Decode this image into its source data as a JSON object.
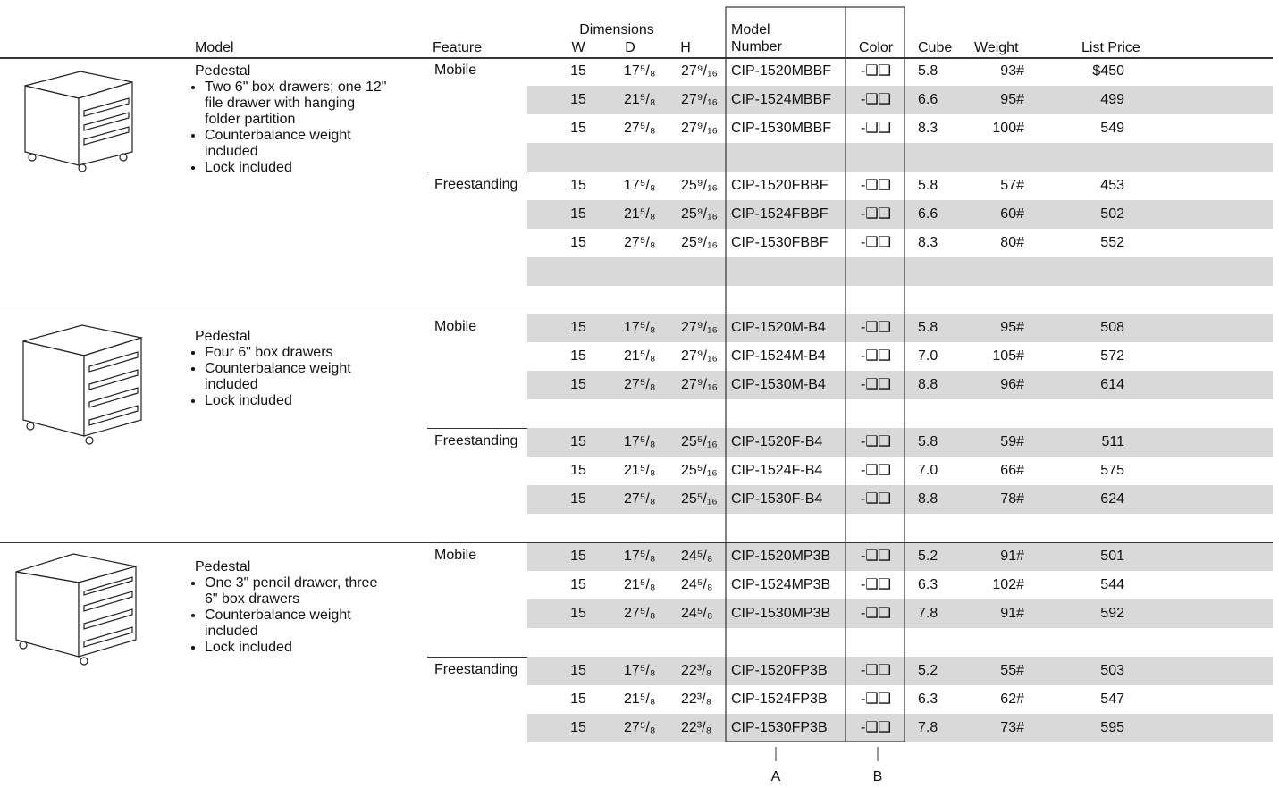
{
  "header": {
    "model": "Model",
    "feature": "Feature",
    "dimensions": "Dimensions",
    "w": "W",
    "d": "D",
    "h": "H",
    "model_number": [
      "Model",
      "Number"
    ],
    "color": "Color",
    "cube": "Cube",
    "weight": "Weight",
    "list_price": "List Price"
  },
  "groups": [
    {
      "title": "Pedestal",
      "bullets": [
        [
          "Two 6\" box drawers; one 12\"",
          "file drawer with hanging",
          "folder partition"
        ],
        [
          "Counterbalance weight",
          "included"
        ],
        [
          "Lock included"
        ]
      ],
      "features": [
        {
          "name": "Mobile",
          "rows": [
            [
              "15",
              "17⁵/₈",
              "27⁹/₁₆",
              "CIP-1520MBBF",
              "-❑❑",
              "5.8",
              "93#",
              "$450"
            ],
            [
              "15",
              "21⁵/₈",
              "27⁹/₁₆",
              "CIP-1524MBBF",
              "-❑❑",
              "6.6",
              "95#",
              "499"
            ],
            [
              "15",
              "27⁵/₈",
              "27⁹/₁₆",
              "CIP-1530MBBF",
              "-❑❑",
              "8.3",
              "100#",
              "549"
            ]
          ]
        },
        {
          "name": "Freestanding",
          "rows": [
            [
              "15",
              "17⁵/₈",
              "25⁹/₁₆",
              "CIP-1520FBBF",
              "-❑❑",
              "5.8",
              "57#",
              "453"
            ],
            [
              "15",
              "21⁵/₈",
              "25⁹/₁₆",
              "CIP-1524FBBF",
              "-❑❑",
              "6.6",
              "60#",
              "502"
            ],
            [
              "15",
              "27⁵/₈",
              "25⁹/₁₆",
              "CIP-1530FBBF",
              "-❑❑",
              "8.3",
              "80#",
              "552"
            ]
          ]
        }
      ]
    },
    {
      "title": "Pedestal",
      "bullets": [
        [
          "Four 6\" box drawers"
        ],
        [
          "Counterbalance weight",
          "included"
        ],
        [
          "Lock included"
        ]
      ],
      "features": [
        {
          "name": "Mobile",
          "rows": [
            [
              "15",
              "17⁵/₈",
              "27⁹/₁₆",
              "CIP-1520M-B4",
              "-❑❑",
              "5.8",
              "95#",
              "508"
            ],
            [
              "15",
              "21⁵/₈",
              "27⁹/₁₆",
              "CIP-1524M-B4",
              "-❑❑",
              "7.0",
              "105#",
              "572"
            ],
            [
              "15",
              "27⁵/₈",
              "27⁹/₁₆",
              "CIP-1530M-B4",
              "-❑❑",
              "8.8",
              "96#",
              "614"
            ]
          ]
        },
        {
          "name": "Freestanding",
          "rows": [
            [
              "15",
              "17⁵/₈",
              "25⁵/₁₆",
              "CIP-1520F-B4",
              "-❑❑",
              "5.8",
              "59#",
              "511"
            ],
            [
              "15",
              "21⁵/₈",
              "25⁵/₁₆",
              "CIP-1524F-B4",
              "-❑❑",
              "7.0",
              "66#",
              "575"
            ],
            [
              "15",
              "27⁵/₈",
              "25⁵/₁₆",
              "CIP-1530F-B4",
              "-❑❑",
              "8.8",
              "78#",
              "624"
            ]
          ]
        }
      ]
    },
    {
      "title": "Pedestal",
      "bullets": [
        [
          "One 3\" pencil drawer, three",
          "6\" box drawers"
        ],
        [
          "Counterbalance weight",
          "included"
        ],
        [
          "Lock included"
        ]
      ],
      "features": [
        {
          "name": "Mobile",
          "rows": [
            [
              "15",
              "17⁵/₈",
              "24⁵/₈",
              "CIP-1520MP3B",
              "-❑❑",
              "5.2",
              "91#",
              "501"
            ],
            [
              "15",
              "21⁵/₈",
              "24⁵/₈",
              "CIP-1524MP3B",
              "-❑❑",
              "6.3",
              "102#",
              "544"
            ],
            [
              "15",
              "27⁵/₈",
              "24⁵/₈",
              "CIP-1530MP3B",
              "-❑❑",
              "7.8",
              "91#",
              "592"
            ]
          ]
        },
        {
          "name": "Freestanding",
          "rows": [
            [
              "15",
              "17⁵/₈",
              "22³/₈",
              "CIP-1520FP3B",
              "-❑❑",
              "5.2",
              "55#",
              "503"
            ],
            [
              "15",
              "21⁵/₈",
              "22³/₈",
              "CIP-1524FP3B",
              "-❑❑",
              "6.3",
              "62#",
              "547"
            ],
            [
              "15",
              "27⁵/₈",
              "22³/₈",
              "CIP-1530FP3B",
              "-❑❑",
              "7.8",
              "73#",
              "595"
            ]
          ]
        }
      ]
    }
  ],
  "callouts": [
    "A",
    "B"
  ]
}
